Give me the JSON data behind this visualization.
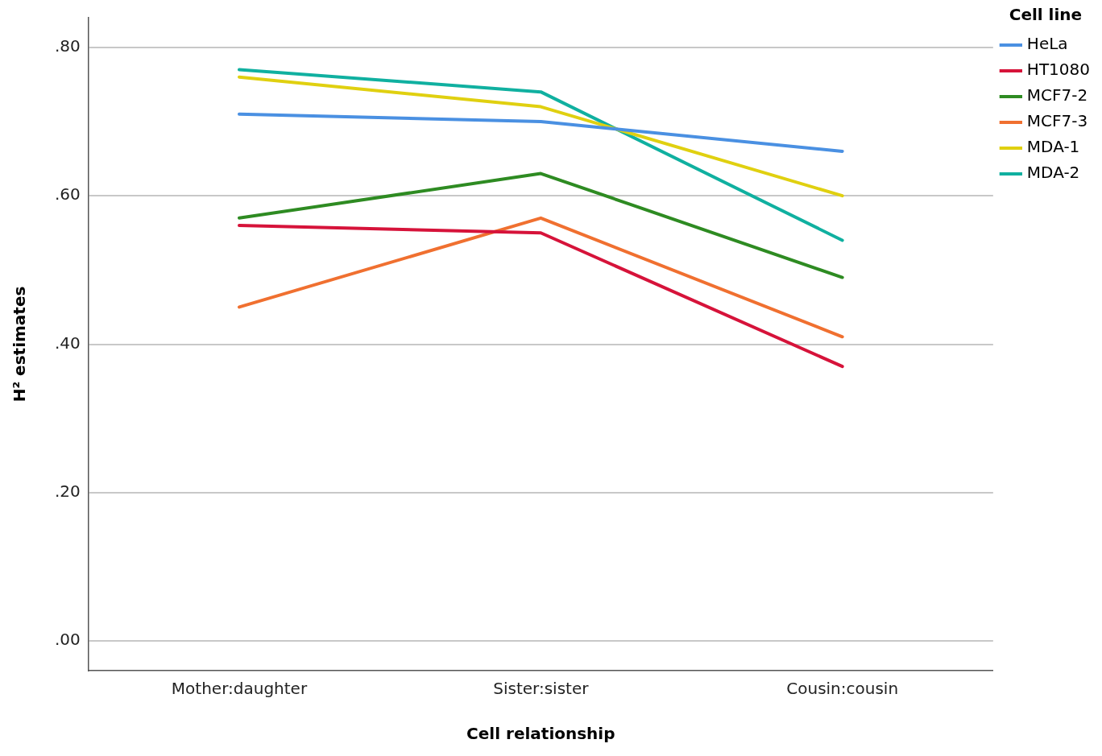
{
  "chart_data": {
    "type": "line",
    "xlabel": "Cell relationship",
    "ylabel": "H² estimates",
    "legend_title": "Cell line",
    "categories": [
      "Mother:daughter",
      "Sister:sister",
      "Cousin:cousin"
    ],
    "series": [
      {
        "name": "HeLa",
        "color": "#4a90e2",
        "values": [
          0.71,
          0.7,
          0.66
        ]
      },
      {
        "name": "HT1080",
        "color": "#d6133a",
        "values": [
          0.56,
          0.55,
          0.37
        ]
      },
      {
        "name": "MCF7-2",
        "color": "#2e8b22",
        "values": [
          0.57,
          0.63,
          0.49
        ]
      },
      {
        "name": "MCF7-3",
        "color": "#f07030",
        "values": [
          0.45,
          0.57,
          0.41
        ]
      },
      {
        "name": "MDA-1",
        "color": "#e0d010",
        "values": [
          0.76,
          0.72,
          0.6
        ]
      },
      {
        "name": "MDA-2",
        "color": "#10b0a0",
        "values": [
          0.77,
          0.74,
          0.54
        ]
      }
    ],
    "ylim": [
      -0.04,
      0.84
    ],
    "yticks": [
      {
        "value": 0,
        "label": ".00"
      },
      {
        "value": 0.2,
        "label": ".20"
      },
      {
        "value": 0.4,
        "label": ".40"
      },
      {
        "value": 0.6,
        "label": ".60"
      },
      {
        "value": 0.8,
        "label": ".80"
      }
    ],
    "grid": "y",
    "legend": "top right",
    "marker": "none",
    "line_style": "solid"
  }
}
